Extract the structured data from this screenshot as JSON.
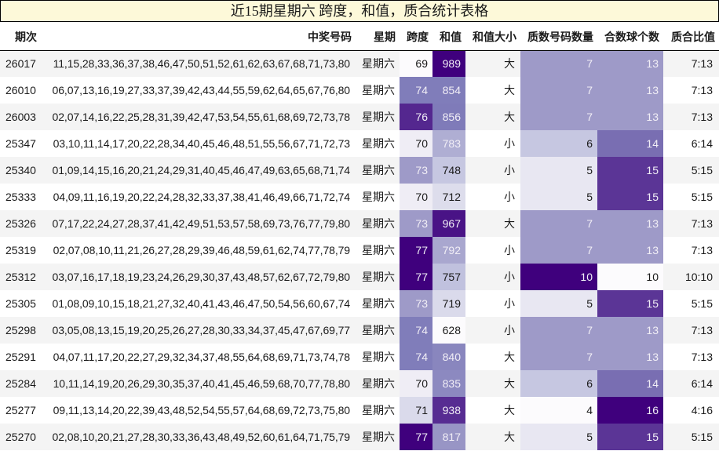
{
  "title": "近15期星期六 跨度，和值，质合统计表格",
  "headers": {
    "issue": "期次",
    "numbers": "中奖号码",
    "weekday": "星期",
    "span": "跨度",
    "sum": "和值",
    "sum_size": "和值大小",
    "prime_count": "质数号码数量",
    "composite_count": "合数球个数",
    "ratio": "质合比值"
  },
  "rows": [
    {
      "issue": "26017",
      "numbers": "11,15,28,33,36,37,38,46,47,50,51,52,61,62,63,67,68,71,73,80",
      "weekday": "星期六",
      "span": "69",
      "sum": "989",
      "sum_size": "大",
      "prime_count": "7",
      "composite_count": "13",
      "ratio": "7:13"
    },
    {
      "issue": "26010",
      "numbers": "06,07,13,16,19,27,33,37,39,42,43,44,55,59,62,64,65,67,76,80",
      "weekday": "星期六",
      "span": "74",
      "sum": "854",
      "sum_size": "大",
      "prime_count": "7",
      "composite_count": "13",
      "ratio": "7:13"
    },
    {
      "issue": "26003",
      "numbers": "02,07,14,16,22,25,28,31,39,42,47,53,54,55,61,68,69,72,73,78",
      "weekday": "星期六",
      "span": "76",
      "sum": "856",
      "sum_size": "大",
      "prime_count": "7",
      "composite_count": "13",
      "ratio": "7:13"
    },
    {
      "issue": "25347",
      "numbers": "03,10,11,14,17,20,22,28,34,40,45,46,48,51,55,56,67,71,72,73",
      "weekday": "星期六",
      "span": "70",
      "sum": "783",
      "sum_size": "小",
      "prime_count": "6",
      "composite_count": "14",
      "ratio": "6:14"
    },
    {
      "issue": "25340",
      "numbers": "01,09,14,15,16,20,21,24,29,31,40,45,46,47,49,63,65,68,71,74",
      "weekday": "星期六",
      "span": "73",
      "sum": "748",
      "sum_size": "小",
      "prime_count": "5",
      "composite_count": "15",
      "ratio": "5:15"
    },
    {
      "issue": "25333",
      "numbers": "04,09,11,16,19,20,22,24,28,32,33,37,38,41,46,49,66,71,72,74",
      "weekday": "星期六",
      "span": "70",
      "sum": "712",
      "sum_size": "小",
      "prime_count": "5",
      "composite_count": "15",
      "ratio": "5:15"
    },
    {
      "issue": "25326",
      "numbers": "07,17,22,24,27,28,37,41,42,49,51,53,57,58,69,73,76,77,79,80",
      "weekday": "星期六",
      "span": "73",
      "sum": "967",
      "sum_size": "大",
      "prime_count": "7",
      "composite_count": "13",
      "ratio": "7:13"
    },
    {
      "issue": "25319",
      "numbers": "02,07,08,10,11,21,26,27,28,29,39,46,48,59,61,62,74,77,78,79",
      "weekday": "星期六",
      "span": "77",
      "sum": "792",
      "sum_size": "小",
      "prime_count": "7",
      "composite_count": "13",
      "ratio": "7:13"
    },
    {
      "issue": "25312",
      "numbers": "03,07,16,17,18,19,23,24,26,29,30,37,43,48,57,62,67,72,79,80",
      "weekday": "星期六",
      "span": "77",
      "sum": "757",
      "sum_size": "小",
      "prime_count": "10",
      "composite_count": "10",
      "ratio": "10:10"
    },
    {
      "issue": "25305",
      "numbers": "01,08,09,10,15,18,21,27,32,40,41,43,46,47,50,54,56,60,67,74",
      "weekday": "星期六",
      "span": "73",
      "sum": "719",
      "sum_size": "小",
      "prime_count": "5",
      "composite_count": "15",
      "ratio": "5:15"
    },
    {
      "issue": "25298",
      "numbers": "03,05,08,13,15,19,20,25,26,27,28,30,33,34,37,45,47,67,69,77",
      "weekday": "星期六",
      "span": "74",
      "sum": "628",
      "sum_size": "小",
      "prime_count": "7",
      "composite_count": "13",
      "ratio": "7:13"
    },
    {
      "issue": "25291",
      "numbers": "04,07,11,17,20,22,27,29,32,34,37,48,55,64,68,69,71,73,74,78",
      "weekday": "星期六",
      "span": "74",
      "sum": "840",
      "sum_size": "大",
      "prime_count": "7",
      "composite_count": "13",
      "ratio": "7:13"
    },
    {
      "issue": "25284",
      "numbers": "10,11,14,19,20,26,29,30,35,37,40,41,45,46,59,68,70,77,78,80",
      "weekday": "星期六",
      "span": "70",
      "sum": "835",
      "sum_size": "大",
      "prime_count": "6",
      "composite_count": "14",
      "ratio": "6:14"
    },
    {
      "issue": "25277",
      "numbers": "09,11,13,14,20,22,39,43,48,52,54,55,57,64,68,69,72,73,75,80",
      "weekday": "星期六",
      "span": "71",
      "sum": "938",
      "sum_size": "大",
      "prime_count": "4",
      "composite_count": "16",
      "ratio": "4:16"
    },
    {
      "issue": "25270",
      "numbers": "02,08,10,20,21,27,28,30,33,36,43,48,49,52,60,61,64,71,75,79",
      "weekday": "星期六",
      "span": "77",
      "sum": "817",
      "sum_size": "大",
      "prime_count": "5",
      "composite_count": "15",
      "ratio": "5:15"
    }
  ],
  "colors": {
    "title_bg": "#fdf9d9",
    "heat_low": "#fcfbfd",
    "heat_high": "#3f007d"
  }
}
